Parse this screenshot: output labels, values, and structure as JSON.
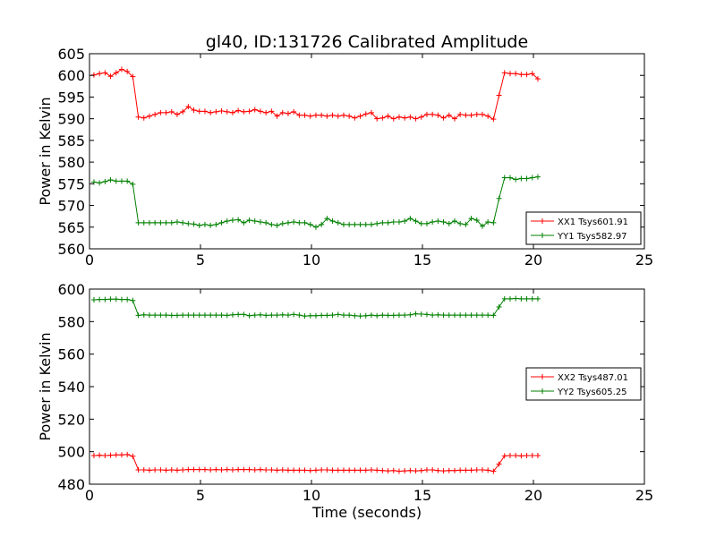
{
  "chart_data": [
    {
      "type": "line",
      "title": "gl40, ID:131726 Calibrated Amplitude",
      "xlabel": "",
      "ylabel": "Power in Kelvin",
      "xlim": [
        0,
        25
      ],
      "ylim": [
        560,
        605
      ],
      "xticks": [
        "0",
        "5",
        "10",
        "15",
        "20",
        "25"
      ],
      "yticks": [
        "560",
        "565",
        "570",
        "575",
        "580",
        "585",
        "590",
        "595",
        "600",
        "605"
      ],
      "legend_position": "lower-right",
      "grid": false,
      "series": [
        {
          "name": "XX1 Tsys601.91",
          "color": "#ff0000",
          "x": [
            0.2,
            0.45,
            0.7,
            0.95,
            1.2,
            1.45,
            1.7,
            1.95,
            2.2,
            2.45,
            2.7,
            2.95,
            3.2,
            3.45,
            3.7,
            3.95,
            4.2,
            4.45,
            4.7,
            4.95,
            5.2,
            5.45,
            5.7,
            5.95,
            6.2,
            6.45,
            6.7,
            6.95,
            7.2,
            7.45,
            7.7,
            7.95,
            8.2,
            8.45,
            8.7,
            8.95,
            9.2,
            9.45,
            9.7,
            9.95,
            10.2,
            10.45,
            10.7,
            10.95,
            11.2,
            11.45,
            11.7,
            11.95,
            12.2,
            12.45,
            12.7,
            12.95,
            13.2,
            13.45,
            13.7,
            13.95,
            14.2,
            14.45,
            14.7,
            14.95,
            15.2,
            15.45,
            15.7,
            15.95,
            16.2,
            16.45,
            16.7,
            16.95,
            17.2,
            17.45,
            17.7,
            17.95,
            18.2,
            18.45,
            18.7,
            18.95,
            19.2,
            19.45,
            19.7,
            19.95,
            20.2
          ],
          "y": [
            600.1,
            600.4,
            600.6,
            599.8,
            600.6,
            601.4,
            600.9,
            599.7,
            590.4,
            590.2,
            590.6,
            591.0,
            591.4,
            591.4,
            591.6,
            591.0,
            591.6,
            592.8,
            592.0,
            591.7,
            591.7,
            591.4,
            591.6,
            591.8,
            591.6,
            591.4,
            591.9,
            591.6,
            591.7,
            592.1,
            591.7,
            591.4,
            591.7,
            590.6,
            591.4,
            591.2,
            591.6,
            590.8,
            590.8,
            590.6,
            590.8,
            590.8,
            590.6,
            590.8,
            590.6,
            590.8,
            590.6,
            590.2,
            590.6,
            591.1,
            591.4,
            590.0,
            590.2,
            590.6,
            590.0,
            590.4,
            590.2,
            590.4,
            590.0,
            590.4,
            591.0,
            591.0,
            590.8,
            590.2,
            590.8,
            590.0,
            591.0,
            590.8,
            590.8,
            591.0,
            591.0,
            590.6,
            589.9,
            595.4,
            600.6,
            600.4,
            600.4,
            600.2,
            600.2,
            600.4,
            599.2
          ]
        },
        {
          "name": "YY1 Tsys582.97",
          "color": "#008000",
          "x": [
            0.2,
            0.45,
            0.7,
            0.95,
            1.2,
            1.45,
            1.7,
            1.95,
            2.2,
            2.45,
            2.7,
            2.95,
            3.2,
            3.45,
            3.7,
            3.95,
            4.2,
            4.45,
            4.7,
            4.95,
            5.2,
            5.45,
            5.7,
            5.95,
            6.2,
            6.45,
            6.7,
            6.95,
            7.2,
            7.45,
            7.7,
            7.95,
            8.2,
            8.45,
            8.7,
            8.95,
            9.2,
            9.45,
            9.7,
            9.95,
            10.2,
            10.45,
            10.7,
            10.95,
            11.2,
            11.45,
            11.7,
            11.95,
            12.2,
            12.45,
            12.7,
            12.95,
            13.2,
            13.45,
            13.7,
            13.95,
            14.2,
            14.45,
            14.7,
            14.95,
            15.2,
            15.45,
            15.7,
            15.95,
            16.2,
            16.45,
            16.7,
            16.95,
            17.2,
            17.45,
            17.7,
            17.95,
            18.2,
            18.45,
            18.7,
            18.95,
            19.2,
            19.45,
            19.7,
            19.95,
            20.2
          ],
          "y": [
            575.4,
            575.2,
            575.5,
            575.9,
            575.6,
            575.6,
            575.6,
            574.9,
            566.0,
            566.0,
            566.0,
            566.0,
            566.0,
            566.0,
            566.0,
            566.2,
            566.0,
            565.8,
            565.7,
            565.4,
            565.6,
            565.4,
            565.6,
            566.0,
            566.4,
            566.6,
            566.7,
            566.0,
            566.6,
            566.4,
            566.2,
            566.0,
            565.6,
            565.4,
            565.8,
            566.0,
            566.2,
            566.0,
            566.0,
            565.6,
            565.0,
            565.6,
            567.0,
            566.4,
            566.0,
            565.6,
            565.6,
            565.6,
            565.6,
            565.6,
            565.6,
            565.8,
            566.0,
            566.0,
            566.2,
            566.2,
            566.4,
            567.0,
            566.4,
            565.8,
            565.8,
            566.2,
            566.4,
            566.2,
            565.8,
            566.4,
            565.8,
            565.6,
            567.0,
            566.6,
            565.2,
            566.2,
            566.0,
            571.6,
            576.4,
            576.4,
            576.0,
            576.2,
            576.2,
            576.4,
            576.6
          ]
        }
      ]
    },
    {
      "type": "line",
      "title": "",
      "xlabel": "Time (seconds)",
      "ylabel": "Power in Kelvin",
      "xlim": [
        0,
        25
      ],
      "ylim": [
        480,
        600
      ],
      "xticks": [
        "0",
        "5",
        "10",
        "15",
        "20",
        "25"
      ],
      "yticks": [
        "480",
        "500",
        "520",
        "540",
        "560",
        "580",
        "600"
      ],
      "legend_position": "center-right",
      "grid": false,
      "series": [
        {
          "name": "XX2 Tsys487.01",
          "color": "#ff0000",
          "x": [
            0.2,
            0.45,
            0.7,
            0.95,
            1.2,
            1.45,
            1.7,
            1.95,
            2.2,
            2.45,
            2.7,
            2.95,
            3.2,
            3.45,
            3.7,
            3.95,
            4.2,
            4.45,
            4.7,
            4.95,
            5.2,
            5.45,
            5.7,
            5.95,
            6.2,
            6.45,
            6.7,
            6.95,
            7.2,
            7.45,
            7.7,
            7.95,
            8.2,
            8.45,
            8.7,
            8.95,
            9.2,
            9.45,
            9.7,
            9.95,
            10.2,
            10.45,
            10.7,
            10.95,
            11.2,
            11.45,
            11.7,
            11.95,
            12.2,
            12.45,
            12.7,
            12.95,
            13.2,
            13.45,
            13.7,
            13.95,
            14.2,
            14.45,
            14.7,
            14.95,
            15.2,
            15.45,
            15.7,
            15.95,
            16.2,
            16.45,
            16.7,
            16.95,
            17.2,
            17.45,
            17.7,
            17.95,
            18.2,
            18.45,
            18.7,
            18.95,
            19.2,
            19.45,
            19.7,
            19.95,
            20.2
          ],
          "y": [
            497.6,
            497.8,
            497.6,
            497.8,
            498.0,
            498.0,
            498.2,
            497.2,
            488.8,
            488.8,
            488.6,
            488.8,
            488.8,
            488.6,
            488.8,
            488.6,
            488.8,
            489.0,
            489.0,
            489.0,
            489.0,
            488.8,
            489.0,
            488.8,
            489.0,
            488.8,
            489.0,
            489.0,
            489.0,
            488.8,
            489.0,
            488.8,
            488.8,
            488.6,
            488.8,
            488.6,
            488.6,
            488.6,
            488.6,
            488.4,
            488.6,
            488.8,
            488.8,
            488.6,
            488.6,
            488.6,
            488.6,
            488.6,
            488.6,
            488.6,
            488.8,
            488.6,
            488.4,
            488.2,
            488.4,
            488.0,
            488.2,
            488.4,
            488.2,
            488.4,
            488.8,
            488.8,
            488.4,
            488.2,
            488.4,
            488.4,
            488.6,
            488.6,
            488.6,
            488.8,
            488.8,
            488.6,
            487.9,
            492.4,
            497.4,
            497.6,
            497.6,
            497.4,
            497.6,
            497.6,
            497.6
          ]
        },
        {
          "name": "YY2 Tsys605.25",
          "color": "#008000",
          "x": [
            0.2,
            0.45,
            0.7,
            0.95,
            1.2,
            1.45,
            1.7,
            1.95,
            2.2,
            2.45,
            2.7,
            2.95,
            3.2,
            3.45,
            3.7,
            3.95,
            4.2,
            4.45,
            4.7,
            4.95,
            5.2,
            5.45,
            5.7,
            5.95,
            6.2,
            6.45,
            6.7,
            6.95,
            7.2,
            7.45,
            7.7,
            7.95,
            8.2,
            8.45,
            8.7,
            8.95,
            9.2,
            9.45,
            9.7,
            9.95,
            10.2,
            10.45,
            10.7,
            10.95,
            11.2,
            11.45,
            11.7,
            11.95,
            12.2,
            12.45,
            12.7,
            12.95,
            13.2,
            13.45,
            13.7,
            13.95,
            14.2,
            14.45,
            14.7,
            14.95,
            15.2,
            15.45,
            15.7,
            15.95,
            16.2,
            16.45,
            16.7,
            16.95,
            17.2,
            17.45,
            17.7,
            17.95,
            18.2,
            18.45,
            18.7,
            18.95,
            19.2,
            19.45,
            19.7,
            19.95,
            20.2
          ],
          "y": [
            593.4,
            593.6,
            593.6,
            593.8,
            593.8,
            593.6,
            593.6,
            593.0,
            583.8,
            584.2,
            584.0,
            584.0,
            584.0,
            584.0,
            583.8,
            583.8,
            584.0,
            584.0,
            584.0,
            584.0,
            584.0,
            584.0,
            584.0,
            584.0,
            583.8,
            584.2,
            584.4,
            584.4,
            583.6,
            584.0,
            584.2,
            583.8,
            584.0,
            584.0,
            584.2,
            584.0,
            584.4,
            584.0,
            583.4,
            583.6,
            583.6,
            583.8,
            583.8,
            584.0,
            584.4,
            584.0,
            584.0,
            583.6,
            583.4,
            583.6,
            584.0,
            583.6,
            584.0,
            583.8,
            583.8,
            584.0,
            584.0,
            584.2,
            584.8,
            584.6,
            584.4,
            584.0,
            584.2,
            584.0,
            584.0,
            584.0,
            584.0,
            584.0,
            584.0,
            584.0,
            584.0,
            584.0,
            583.8,
            589.0,
            594.0,
            594.0,
            594.2,
            594.0,
            594.0,
            594.0,
            594.0
          ]
        }
      ]
    }
  ]
}
